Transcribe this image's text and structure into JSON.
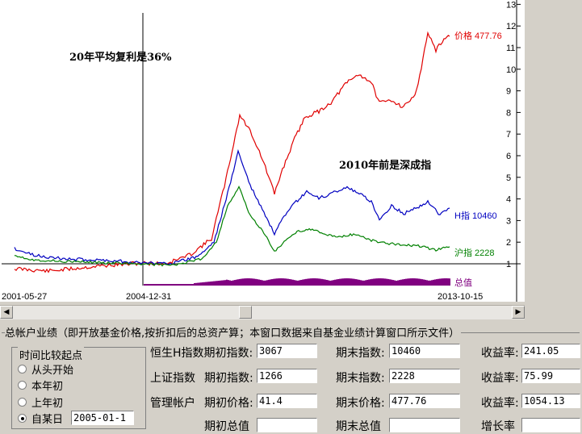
{
  "chart": {
    "annotations": {
      "compound_note": "20年平均复利是36%",
      "pre2010_note": "2010年前是深成指"
    },
    "series_labels": {
      "price": "价格 477.76",
      "hsi": "H指 10460",
      "sh": "沪指 2228",
      "volume": "总值"
    },
    "date_labels": [
      "2001-05-27",
      "2004-12-31",
      "2013-10-15"
    ],
    "y_ticks": [
      "1",
      "2",
      "3",
      "4",
      "5",
      "6",
      "7",
      "8",
      "9",
      "10",
      "11",
      "12",
      "13"
    ],
    "colors": {
      "price": "#e00000",
      "hsi": "#0000c0",
      "sh": "#008000",
      "volume": "#800080"
    }
  },
  "chart_data": {
    "type": "line",
    "x": [
      "2001-05-27",
      "2004-12-31",
      "2013-10-15"
    ],
    "series": [
      {
        "name": "价格",
        "last_value": 477.76
      },
      {
        "name": "H指",
        "last_value": 10460
      },
      {
        "name": "沪指",
        "last_value": 2228
      }
    ],
    "ylim": [
      1,
      13
    ]
  },
  "perf": {
    "group_title": "总帐户业绩（即开放基金价格,按折扣后的总资产算；本窗口数据来自基金业绩计算窗口所示文件）",
    "compare": {
      "title": "时间比较起点",
      "options": [
        "从头开始",
        "本年初",
        "上年初",
        "自某日"
      ],
      "selected": 3,
      "date_value": "2005-01-1"
    },
    "rows": [
      {
        "label": "恒生H指数期初指数:",
        "start": "3067",
        "end_label": "期末指数:",
        "end": "10460",
        "ret_label": "收益率:",
        "ret": "241.05"
      },
      {
        "label": "上证指数",
        "sub_label": "期初指数:",
        "start": "1266",
        "end_label": "期末指数:",
        "end": "2228",
        "ret_label": "收益率:",
        "ret": "75.99"
      },
      {
        "label": "管理帐户",
        "sub_label": "期初价格:",
        "start": "41.4",
        "end_label": "期末价格:",
        "end": "477.76",
        "ret_label": "收益率:",
        "ret": "1054.13"
      },
      {
        "label": "",
        "sub_label": "期初总值",
        "start": "",
        "end_label": "期末总值",
        "end": "",
        "ret_label": "增长率",
        "ret": ""
      }
    ]
  }
}
